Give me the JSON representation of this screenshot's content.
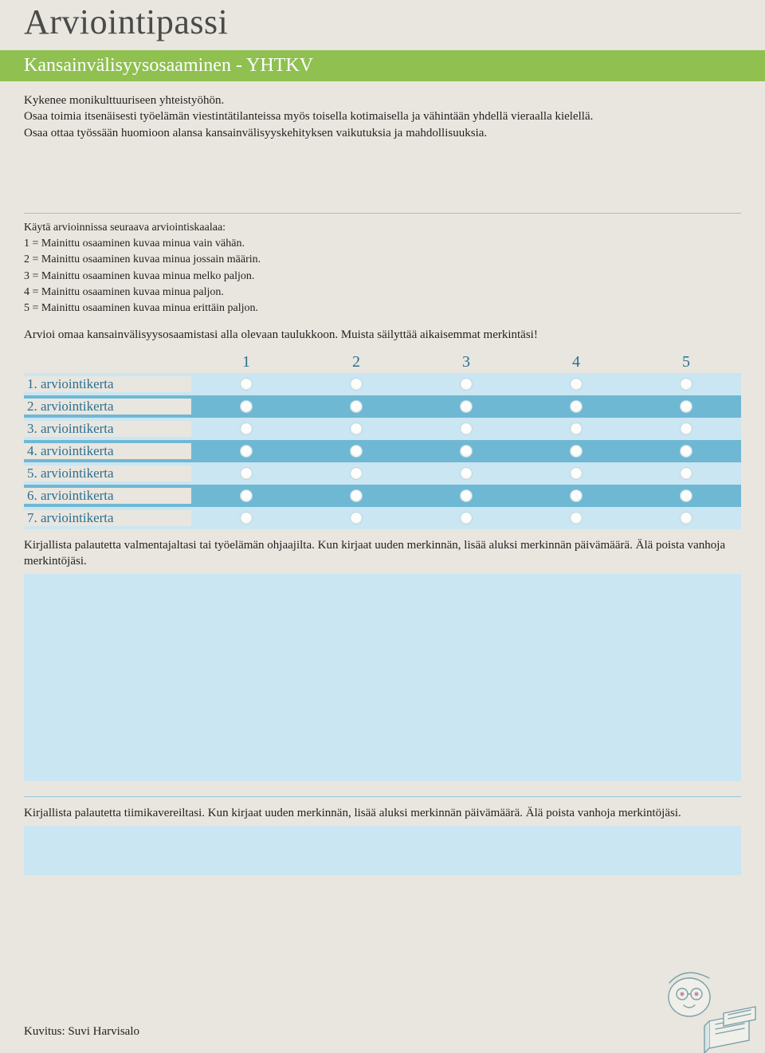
{
  "page_title": "Arviointipassi",
  "header_bar": "Kansainvälisyysosaaminen - YHTKV",
  "intro": "Kykenee monikulttuuriseen yhteistyöhön.\nOsaa toimia itsenäisesti työelämän viestintätilanteissa myös toisella kotimaisella ja vähintään yhdellä vieraalla kielellä.\nOsaa ottaa työssään huomioon alansa kansainvälisyyskehityksen vaikutuksia ja mahdollisuuksia.",
  "scale_intro": {
    "title": "Käytä arvioinnissa seuraava arviointiskaalaa:",
    "items": [
      "1 = Mainittu osaaminen kuvaa minua vain vähän.",
      "2 = Mainittu osaaminen kuvaa minua jossain määrin.",
      "3 = Mainittu osaaminen kuvaa minua melko paljon.",
      "4 = Mainittu osaaminen kuvaa minua paljon.",
      "5 = Mainittu osaaminen kuvaa minua erittäin paljon."
    ]
  },
  "instruction": "Arvioi omaa kansainvälisyysosaamistasi alla olevaan taulukkoon. Muista säilyttää aikaisemmat merkintäsi!",
  "rating_table": {
    "columns": [
      "1",
      "2",
      "3",
      "4",
      "5"
    ],
    "rows": [
      {
        "label": "1. arviointikerta",
        "bg": "lightblue"
      },
      {
        "label": "2. arviointikerta",
        "bg": "teal"
      },
      {
        "label": "3. arviointikerta",
        "bg": "lightblue"
      },
      {
        "label": "4. arviointikerta",
        "bg": "teal"
      },
      {
        "label": "5. arviointikerta",
        "bg": "lightblue"
      },
      {
        "label": "6. arviointikerta",
        "bg": "teal"
      },
      {
        "label": "7. arviointikerta",
        "bg": "lightblue"
      }
    ],
    "colors": {
      "lightblue": "#cae6f2",
      "teal": "#6fb8d4",
      "header_text": "#2c6f92",
      "label_text": "#2c6f92",
      "page_bg": "#e9e6df",
      "green_bar": "#8fc050"
    }
  },
  "feedback1_label": "Kirjallista palautetta valmentajaltasi tai työelämän ohjaajilta. Kun kirjaat uuden merkinnän, lisää aluksi merkinnän päivämäärä. Älä poista vanhoja merkintöjäsi.",
  "feedback2_label": "Kirjallista palautetta tiimikavereiltasi. Kun kirjaat uuden merkinnän, lisää aluksi merkinnän päivämäärä. Älä poista vanhoja merkintöjäsi.",
  "credit": "Kuvitus: Suvi Harvisalo"
}
